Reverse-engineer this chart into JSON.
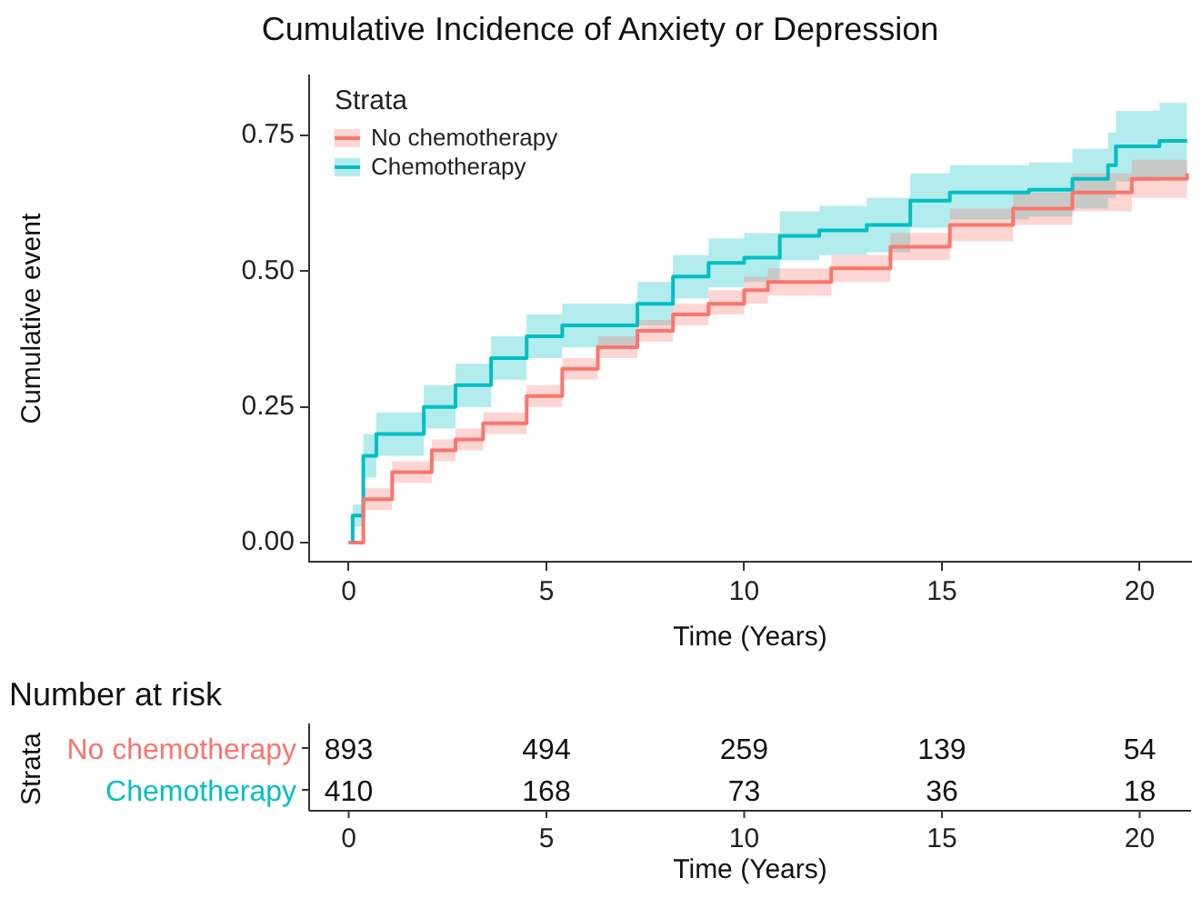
{
  "chart_data": [
    {
      "type": "step",
      "title": "Cumulative Incidence of Anxiety or Depression",
      "xlabel": "Time (Years)",
      "ylabel": "Cumulative event",
      "legend_title": "Strata",
      "legend": "top left",
      "xlim": [
        -1,
        21.3
      ],
      "xticks": [
        0,
        5,
        10,
        15,
        20
      ],
      "ylim": [
        -0.035,
        0.86
      ],
      "yticks": [
        {
          "value": 0,
          "label": "0.00"
        },
        {
          "value": 0.25,
          "label": "0.25"
        },
        {
          "value": 0.5,
          "label": "0.50"
        },
        {
          "value": 0.75,
          "label": "0.75"
        }
      ],
      "series": [
        {
          "name": "No chemotherapy",
          "color": "#f8766d",
          "x": [
            0,
            0.37,
            1.1,
            2.1,
            2.7,
            3.4,
            4.5,
            5.4,
            6.3,
            7.3,
            8.2,
            9.1,
            10,
            10.6,
            12.2,
            13.7,
            15.2,
            16.8,
            18.3,
            19.8,
            21.2
          ],
          "values": [
            0,
            0.08,
            0.13,
            0.17,
            0.19,
            0.22,
            0.27,
            0.32,
            0.36,
            0.39,
            0.42,
            0.44,
            0.465,
            0.48,
            0.505,
            0.545,
            0.585,
            0.615,
            0.645,
            0.67,
            0.68
          ],
          "lower": [
            0,
            0.06,
            0.11,
            0.15,
            0.17,
            0.2,
            0.25,
            0.3,
            0.34,
            0.37,
            0.4,
            0.42,
            0.44,
            0.455,
            0.48,
            0.52,
            0.555,
            0.585,
            0.61,
            0.635,
            0.64
          ],
          "upper": [
            0,
            0.1,
            0.15,
            0.19,
            0.21,
            0.24,
            0.29,
            0.34,
            0.38,
            0.41,
            0.44,
            0.465,
            0.49,
            0.505,
            0.53,
            0.57,
            0.615,
            0.645,
            0.68,
            0.705,
            0.72
          ]
        },
        {
          "name": "Chemotherapy",
          "color": "#00bfc4",
          "x": [
            0,
            0.1,
            0.37,
            0.7,
            1.9,
            2.7,
            3.6,
            4.5,
            5.4,
            6.3,
            7.3,
            8.2,
            9.1,
            10,
            10.9,
            11.9,
            13.1,
            14.2,
            15.2,
            17.2,
            18.3,
            19.2,
            19.4,
            20.5,
            21.2
          ],
          "values": [
            0,
            0.05,
            0.16,
            0.2,
            0.25,
            0.29,
            0.34,
            0.38,
            0.4,
            0.4,
            0.44,
            0.49,
            0.515,
            0.525,
            0.565,
            0.575,
            0.585,
            0.63,
            0.645,
            0.65,
            0.67,
            0.695,
            0.73,
            0.74,
            0.74
          ],
          "lower": [
            0,
            0.03,
            0.12,
            0.16,
            0.21,
            0.25,
            0.3,
            0.34,
            0.36,
            0.36,
            0.4,
            0.45,
            0.47,
            0.48,
            0.52,
            0.53,
            0.535,
            0.58,
            0.595,
            0.6,
            0.615,
            0.635,
            0.665,
            0.67,
            0.67
          ],
          "upper": [
            0,
            0.07,
            0.2,
            0.24,
            0.29,
            0.33,
            0.38,
            0.42,
            0.44,
            0.44,
            0.48,
            0.53,
            0.56,
            0.57,
            0.61,
            0.62,
            0.635,
            0.68,
            0.695,
            0.7,
            0.725,
            0.755,
            0.795,
            0.81,
            0.81
          ]
        }
      ]
    },
    {
      "type": "heatmap",
      "title": "Number at risk",
      "xlabel": "Time (Years)",
      "ylabel": "Strata",
      "data_labels": true,
      "categories": [
        "0",
        "5",
        "10",
        "15",
        "20"
      ],
      "y_categories": [
        "No chemotherapy",
        "Chemotherapy"
      ],
      "cells": [
        [
          893,
          494,
          259,
          139,
          54
        ],
        [
          410,
          168,
          73,
          36,
          18
        ]
      ]
    }
  ]
}
